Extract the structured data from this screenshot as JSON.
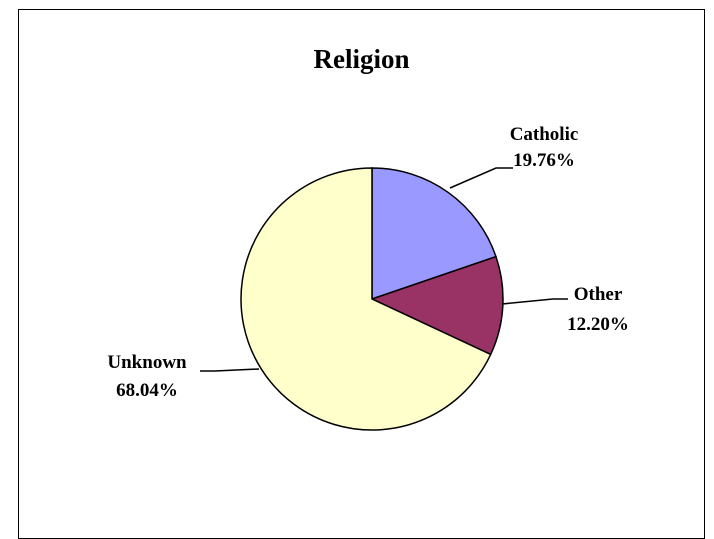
{
  "chart_data": {
    "type": "pie",
    "title": "Religion",
    "slices": [
      {
        "name": "Catholic",
        "value": 19.76,
        "label": "19.76%",
        "color": "#9999ff"
      },
      {
        "name": "Other",
        "value": 12.2,
        "label": "12.20%",
        "color": "#993366"
      },
      {
        "name": "Unknown",
        "value": 68.04,
        "label": "68.04%",
        "color": "#ffffcc"
      }
    ],
    "start": "12 o'clock",
    "direction": "clockwise"
  }
}
